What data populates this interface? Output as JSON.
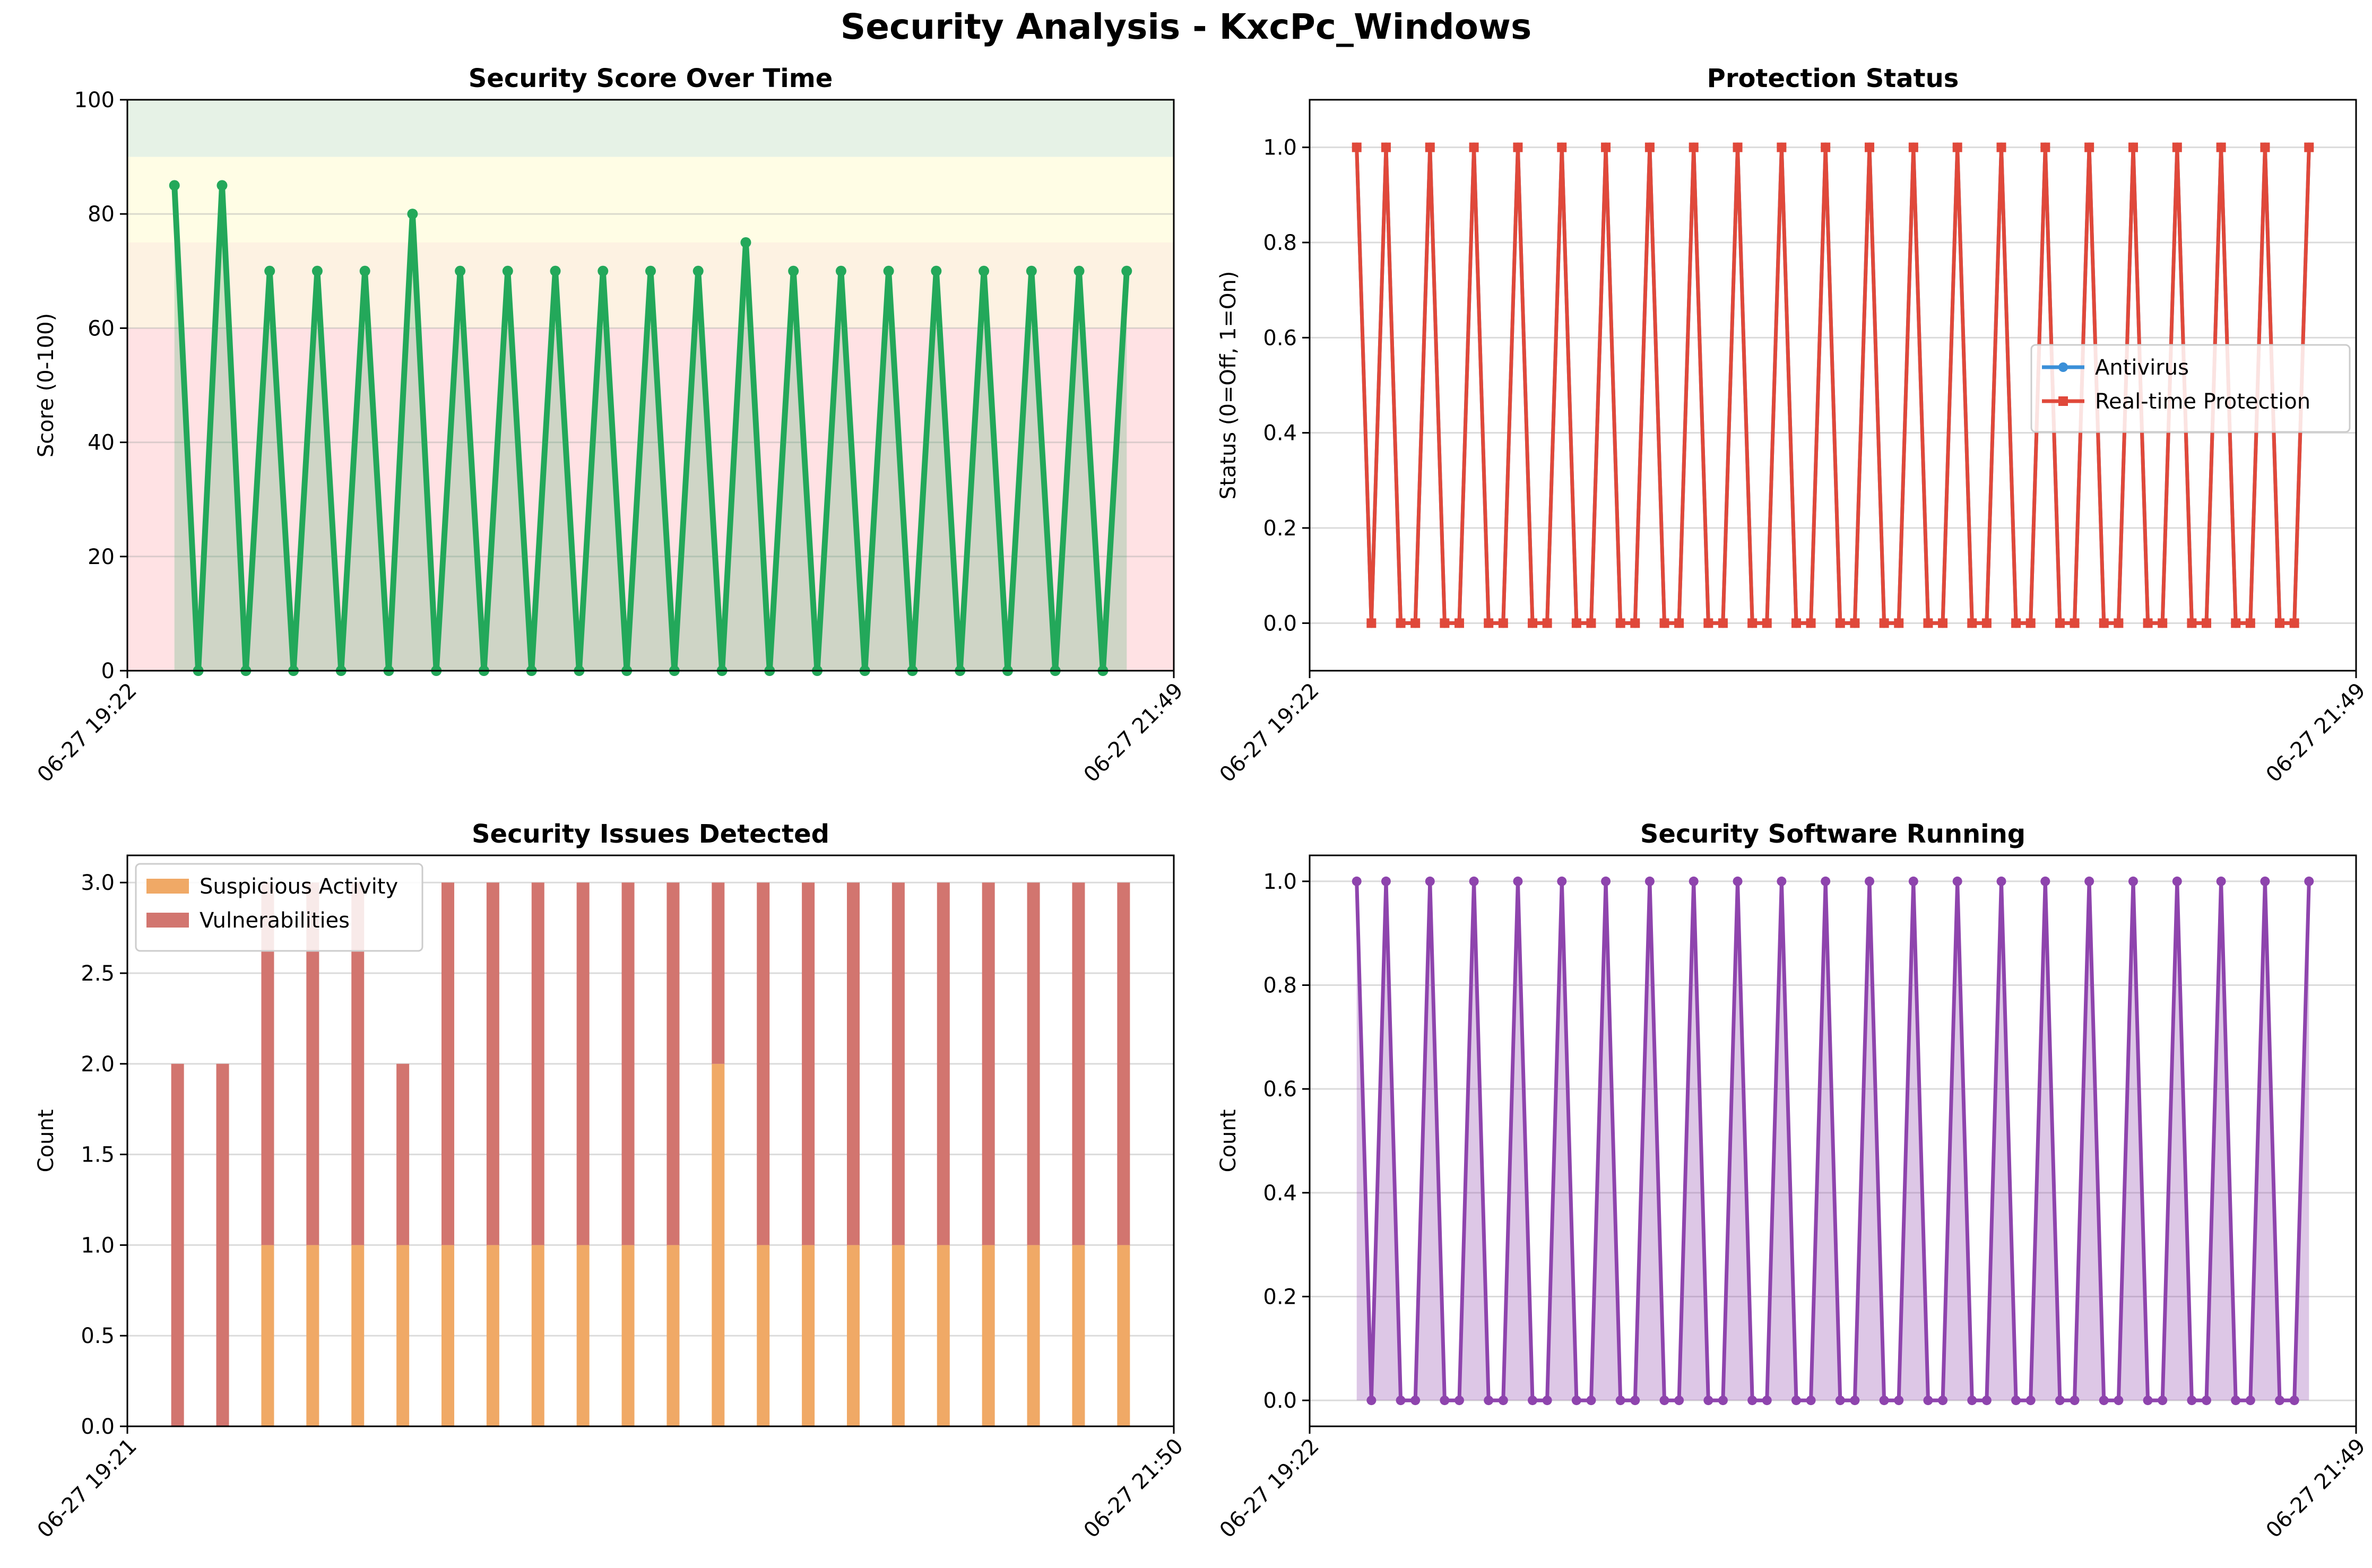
{
  "suptitle": "Security Analysis - KxcPc_Windows",
  "chart_data": [
    {
      "id": "score",
      "type": "line",
      "title": "Security Score Over Time",
      "xlabel": "",
      "ylabel": "Score (0-100)",
      "x_tick_labels": [
        "06-27 19:22",
        "06-27 21:49"
      ],
      "ylim": [
        0,
        100
      ],
      "yticks": [
        0,
        20,
        40,
        60,
        80,
        100
      ],
      "grid": "y",
      "bands": [
        {
          "from": 0,
          "to": 60,
          "color": "#ffe2e4"
        },
        {
          "from": 60,
          "to": 75,
          "color": "#fdf2e2"
        },
        {
          "from": 75,
          "to": 90,
          "color": "#fffde5"
        },
        {
          "from": 90,
          "to": 100,
          "color": "#e6f2e6"
        }
      ],
      "fill": true,
      "color": "#23a85a",
      "series": [
        {
          "values": [
            85,
            0,
            85,
            0,
            70,
            0,
            70,
            0,
            70,
            0,
            80,
            0,
            70,
            0,
            70,
            0,
            70,
            0,
            70,
            0,
            70,
            0,
            70,
            0,
            75,
            0,
            70,
            0,
            70,
            0,
            70,
            0,
            70,
            0,
            70,
            0,
            70,
            0,
            70,
            0,
            70
          ]
        }
      ]
    },
    {
      "id": "protection",
      "type": "line",
      "title": "Protection Status",
      "xlabel": "",
      "ylabel": "Status (0=Off, 1=On)",
      "x_tick_labels": [
        "06-27 19:22",
        "06-27 21:49"
      ],
      "ylim": [
        -0.1,
        1.1
      ],
      "yticks": [
        0.0,
        0.2,
        0.4,
        0.6,
        0.8,
        1.0
      ],
      "grid": "y",
      "legend": "center-right",
      "series": [
        {
          "name": "Antivirus",
          "color": "#3a8fd8",
          "marker": "circle",
          "values": [
            1,
            0,
            1,
            0,
            0,
            1,
            0,
            0,
            1,
            0,
            0,
            1,
            0,
            0,
            1,
            0,
            0,
            1,
            0,
            0,
            1,
            0,
            0,
            1,
            0,
            0,
            1,
            0,
            0,
            1,
            0,
            0,
            1,
            0,
            0,
            1,
            0,
            0,
            1,
            0,
            0,
            1,
            0,
            0,
            1,
            0,
            0,
            1,
            0,
            0,
            1,
            0,
            0,
            1,
            0,
            0,
            1,
            0,
            0,
            1,
            0,
            0,
            1,
            0,
            0,
            1
          ]
        },
        {
          "name": "Real-time Protection",
          "color": "#e0483a",
          "marker": "square",
          "values": [
            1,
            0,
            1,
            0,
            0,
            1,
            0,
            0,
            1,
            0,
            0,
            1,
            0,
            0,
            1,
            0,
            0,
            1,
            0,
            0,
            1,
            0,
            0,
            1,
            0,
            0,
            1,
            0,
            0,
            1,
            0,
            0,
            1,
            0,
            0,
            1,
            0,
            0,
            1,
            0,
            0,
            1,
            0,
            0,
            1,
            0,
            0,
            1,
            0,
            0,
            1,
            0,
            0,
            1,
            0,
            0,
            1,
            0,
            0,
            1,
            0,
            0,
            1,
            0,
            0,
            1
          ]
        }
      ]
    },
    {
      "id": "issues",
      "type": "bar",
      "stacked": true,
      "title": "Security Issues Detected",
      "xlabel": "",
      "ylabel": "Count",
      "x_tick_labels": [
        "06-27 19:21",
        "06-27 21:50"
      ],
      "ylim": [
        0,
        3.15
      ],
      "yticks": [
        0.0,
        0.5,
        1.0,
        1.5,
        2.0,
        2.5,
        3.0
      ],
      "grid": "y",
      "legend": "top-left",
      "series": [
        {
          "name": "Suspicious Activity",
          "color": "#f0a966",
          "values": [
            0,
            0,
            1,
            1,
            1,
            1,
            1,
            1,
            1,
            1,
            1,
            1,
            2,
            1,
            1,
            1,
            1,
            1,
            1,
            1,
            1,
            1
          ]
        },
        {
          "name": "Vulnerabilities",
          "color": "#d2756f",
          "values": [
            2,
            2,
            2,
            2,
            2,
            1,
            2,
            2,
            2,
            2,
            2,
            2,
            1,
            2,
            2,
            2,
            2,
            2,
            2,
            2,
            2,
            2
          ]
        }
      ]
    },
    {
      "id": "software",
      "type": "area",
      "title": "Security Software Running",
      "xlabel": "",
      "ylabel": "Count",
      "x_tick_labels": [
        "06-27 19:22",
        "06-27 21:49"
      ],
      "ylim": [
        -0.05,
        1.05
      ],
      "yticks": [
        0.0,
        0.2,
        0.4,
        0.6,
        0.8,
        1.0
      ],
      "grid": "y",
      "color": "#8e44ad",
      "series": [
        {
          "values": [
            1,
            0,
            1,
            0,
            0,
            1,
            0,
            0,
            1,
            0,
            0,
            1,
            0,
            0,
            1,
            0,
            0,
            1,
            0,
            0,
            1,
            0,
            0,
            1,
            0,
            0,
            1,
            0,
            0,
            1,
            0,
            0,
            1,
            0,
            0,
            1,
            0,
            0,
            1,
            0,
            0,
            1,
            0,
            0,
            1,
            0,
            0,
            1,
            0,
            0,
            1,
            0,
            0,
            1,
            0,
            0,
            1,
            0,
            0,
            1,
            0,
            0,
            1,
            0,
            0,
            1
          ]
        }
      ]
    }
  ]
}
